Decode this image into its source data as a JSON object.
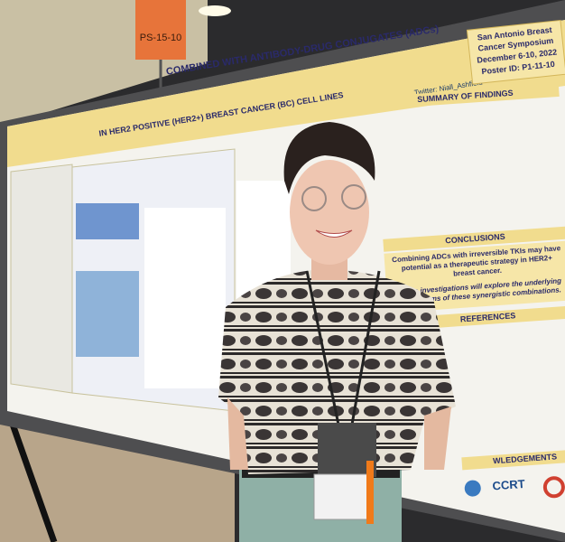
{
  "sign": {
    "label": "PS-15-10"
  },
  "poster": {
    "title_line1": "COMBINED WITH ANTIBODY-DRUG CONJUGATES (ADCs)",
    "title_line2": "IN HER2 POSITIVE (HER2+) BREAST CANCER (BC) CELL LINES",
    "meeting": {
      "name_line1": "San Antonio Breast",
      "name_line2": "Cancer Symposium",
      "dates": "December 6-10, 2022",
      "poster_id": "Poster ID: P1-11-10"
    },
    "twitter": "Twitter: Niall_Ashfield",
    "summary_heading": "SUMMARY OF FINDINGS",
    "conclusions_heading": "CONCLUSIONS",
    "conclusion_1_line1": "Combining ADCs with irreversible TKIs may have",
    "conclusion_1_line2": "potential as a therapeutic strategy in HER2+",
    "conclusion_1_line3": "breast cancer.",
    "conclusion_2_line1": "Future investigations will explore the underlying",
    "conclusion_2_line2": "mechanisms of these synergistic combinations.",
    "references_heading": "REFERENCES",
    "acknowledgements_heading": "WLEDGEMENTS",
    "logo": "CCRT"
  }
}
